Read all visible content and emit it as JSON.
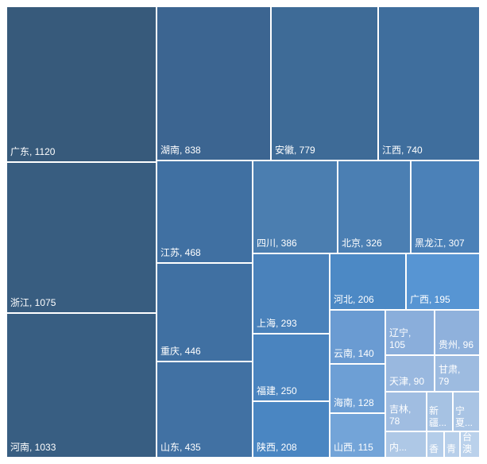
{
  "chart_data": {
    "type": "treemap",
    "items": [
      {
        "label": "广东, 1120",
        "value": 1120,
        "color": "#375a7b"
      },
      {
        "label": "浙江, 1075",
        "value": 1075,
        "color": "#385d80"
      },
      {
        "label": "河南, 1033",
        "value": 1033,
        "color": "#385e82"
      },
      {
        "label": "湖南, 838",
        "value": 838,
        "color": "#3c6591"
      },
      {
        "label": "安徽, 779",
        "value": 779,
        "color": "#3e6b97"
      },
      {
        "label": "江西, 740",
        "value": 740,
        "color": "#3f6e9d"
      },
      {
        "label": "江苏, 468",
        "value": 468,
        "color": "#4070a2"
      },
      {
        "label": "重庆, 446",
        "value": 446,
        "color": "#4070a2"
      },
      {
        "label": "山东, 435",
        "value": 435,
        "color": "#4171a3"
      },
      {
        "label": "四川, 386",
        "value": 386,
        "color": "#4b7eb0"
      },
      {
        "label": "北京, 326",
        "value": 326,
        "color": "#4b7fb3"
      },
      {
        "label": "黑龙江, 307",
        "value": 307,
        "color": "#4b81b8"
      },
      {
        "label": "上海, 293",
        "value": 293,
        "color": "#4a82bb"
      },
      {
        "label": "福建, 250",
        "value": 250,
        "color": "#4a84bf"
      },
      {
        "label": "陕西, 208",
        "value": 208,
        "color": "#4a86c2"
      },
      {
        "label": "河北, 206",
        "value": 206,
        "color": "#4c89c5"
      },
      {
        "label": "广西, 195",
        "value": 195,
        "color": "#5795d3"
      },
      {
        "label": "云南, 140",
        "value": 140,
        "color": "#6a9bd2"
      },
      {
        "label": "海南, 128",
        "value": 128,
        "color": "#6d9fd5"
      },
      {
        "label": "山西, 115",
        "value": 115,
        "color": "#73a4d8"
      },
      {
        "label": "辽宁,\n105",
        "value": 105,
        "color": "#8aaedb"
      },
      {
        "label": "贵州, 96",
        "value": 96,
        "color": "#8fb1dc"
      },
      {
        "label": "天津, 90",
        "value": 90,
        "color": "#99b8df"
      },
      {
        "label": "甘肃,\n79",
        "value": 79,
        "color": "#9dbbe0"
      },
      {
        "label": "吉林,\n78",
        "value": 78,
        "color": "#a0bde1"
      },
      {
        "label": "新\n疆...",
        "value": null,
        "color": "#a6c2e3"
      },
      {
        "label": "宁\n夏...",
        "value": null,
        "color": "#a9c4e4"
      },
      {
        "label": "内...",
        "value": null,
        "color": "#aec8e6"
      },
      {
        "label": "香",
        "value": null,
        "color": "#b4cde9"
      },
      {
        "label": "青",
        "value": null,
        "color": "#b7cfea"
      },
      {
        "label": "台\n澳",
        "value": null,
        "color": "#bad1eb"
      }
    ]
  }
}
